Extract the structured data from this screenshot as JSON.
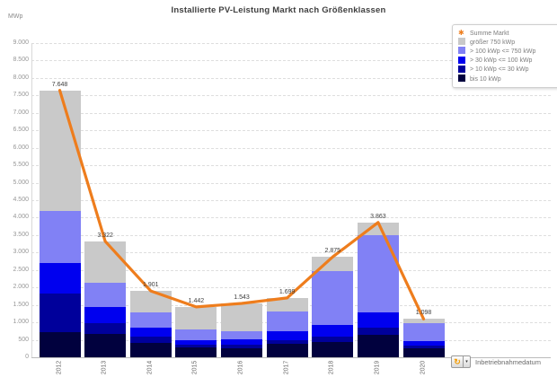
{
  "icons": {
    "cycle_dimension": "↻",
    "dropdown_arrow": "▾",
    "line_marker": "✱"
  },
  "chart_data": {
    "type": "bar",
    "stacked": true,
    "title": "Installierte PV-Leistung Markt nach Größenklassen",
    "y_axis_unit": "MWp",
    "x_dimension_label": "Inbetriebnahmedatum",
    "categories": [
      "2012",
      "2013",
      "2014",
      "2015",
      "2016",
      "2017",
      "2018",
      "2019",
      "2020"
    ],
    "series": [
      {
        "name": "bis 10 kWp",
        "color": "#01013e",
        "values": [
          720,
          670,
          410,
          280,
          260,
          390,
          440,
          640,
          260
        ]
      },
      {
        "name": "> 10 kWp <= 30 kWp",
        "color": "#00009b",
        "values": [
          1110,
          310,
          180,
          80,
          100,
          100,
          150,
          210,
          75
        ]
      },
      {
        "name": "> 30 kWp <= 100 kWp",
        "color": "#0000ef",
        "values": [
          870,
          460,
          260,
          130,
          155,
          260,
          340,
          440,
          125
        ]
      },
      {
        "name": "> 100 kWp <= 750 kWp",
        "color": "#8181f5",
        "values": [
          1500,
          700,
          440,
          310,
          235,
          560,
          1540,
          2210,
          520
        ]
      },
      {
        "name": "größer 750 kWp",
        "color": "#c9c9c9",
        "values": [
          3448,
          1182,
          611,
          642,
          793,
          389,
          405,
          363,
          118
        ]
      }
    ],
    "line_series": {
      "name": "Summe Markt",
      "color": "#ee7d1d",
      "values": [
        7648,
        3322,
        1901,
        1442,
        1543,
        1699,
        2875,
        3863,
        1098
      ]
    },
    "bar_total_labels": [
      "7.648",
      "3.322",
      "1.901",
      "1.442",
      "1.543",
      "1.699",
      "2.875",
      "3.863",
      "1.098"
    ],
    "ylim": [
      0,
      9000
    ],
    "ytick_step": 500,
    "ytick_labels": [
      "0",
      "500",
      "1.000",
      "1.500",
      "2.000",
      "2.500",
      "3.000",
      "3.500",
      "4.000",
      "4.500",
      "5.000",
      "5.500",
      "6.000",
      "6.500",
      "7.000",
      "7.500",
      "8.000",
      "8.500",
      "9.000"
    ],
    "grid": "dashed-horizontal",
    "legend_position": "top-right",
    "legend_order": [
      "Summe Markt",
      "größer 750 kWp",
      "> 100 kWp <= 750 kWp",
      "> 30 kWp <= 100 kWp",
      "> 10 kWp <= 30 kWp",
      "bis 10 kWp"
    ]
  }
}
